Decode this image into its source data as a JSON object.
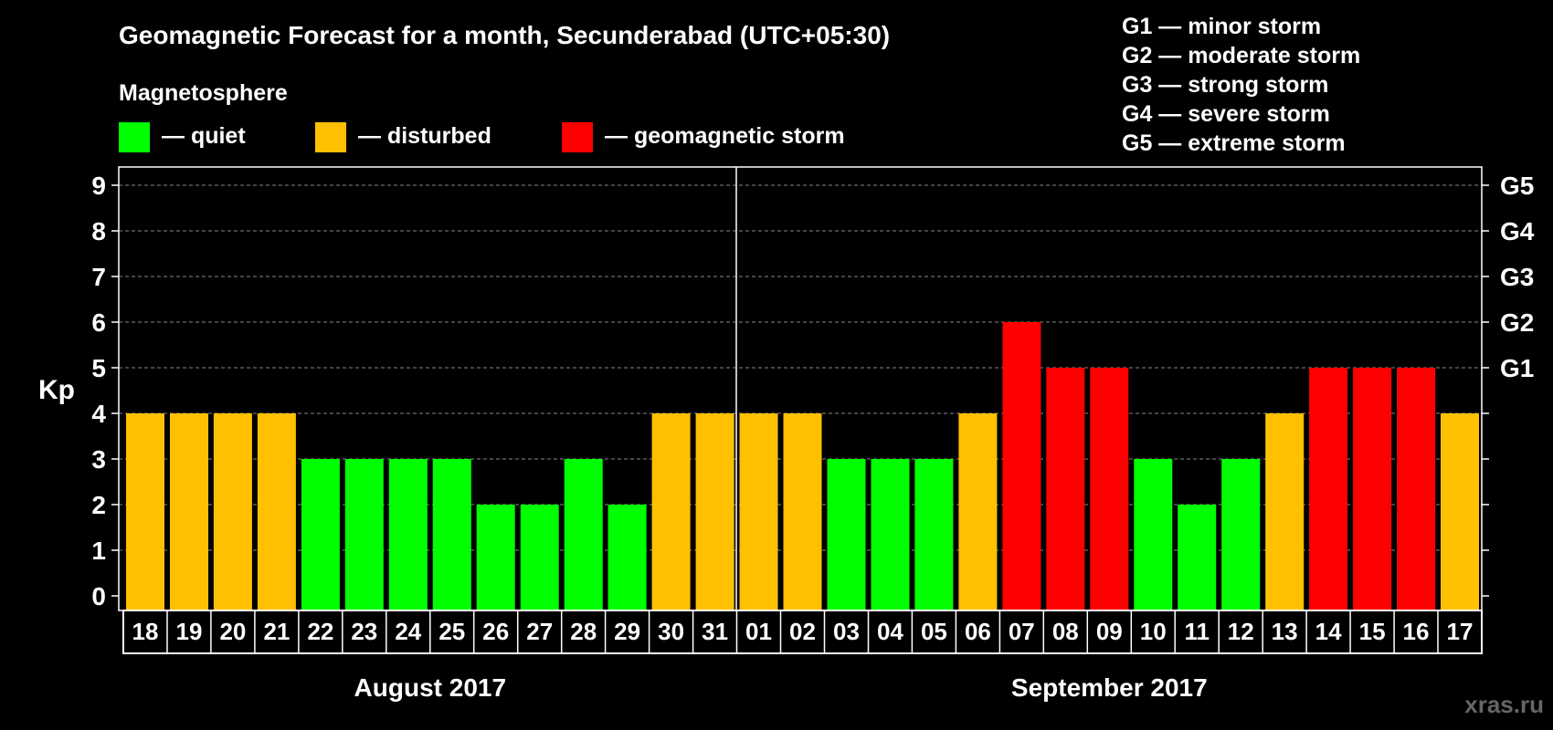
{
  "chart_data": {
    "type": "bar",
    "title": "Geomagnetic Forecast for a month, Secunderabad (UTC+05:30)",
    "legend_title": "Magnetosphere",
    "legend": [
      {
        "key": "quiet",
        "label": "— quiet",
        "color": "#00ff00"
      },
      {
        "key": "disturbed",
        "label": "— disturbed",
        "color": "#ffc000"
      },
      {
        "key": "storm",
        "label": "— geomagnetic storm",
        "color": "#ff0000"
      }
    ],
    "storm_scale": [
      "G1 — minor storm",
      "G2 — moderate storm",
      "G3 — strong storm",
      "G4 — severe storm",
      "G5 — extreme storm"
    ],
    "ylabel": "Kp",
    "ylim": [
      0,
      9
    ],
    "yticks": [
      "0",
      "1",
      "2",
      "3",
      "4",
      "5",
      "6",
      "7",
      "8",
      "9"
    ],
    "right_labels": [
      {
        "value": 5,
        "label": "G1"
      },
      {
        "value": 6,
        "label": "G2"
      },
      {
        "value": 7,
        "label": "G3"
      },
      {
        "value": 8,
        "label": "G4"
      },
      {
        "value": 9,
        "label": "G5"
      }
    ],
    "categories": [
      "18",
      "19",
      "20",
      "21",
      "22",
      "23",
      "24",
      "25",
      "26",
      "27",
      "28",
      "29",
      "30",
      "31",
      "01",
      "02",
      "03",
      "04",
      "05",
      "06",
      "07",
      "08",
      "09",
      "10",
      "11",
      "12",
      "13",
      "14",
      "15",
      "16",
      "17"
    ],
    "values": [
      4,
      4,
      4,
      4,
      3,
      3,
      3,
      3,
      2,
      2,
      3,
      2,
      4,
      4,
      4,
      4,
      3,
      3,
      3,
      4,
      6,
      5,
      5,
      3,
      2,
      3,
      4,
      5,
      5,
      5,
      4
    ],
    "status": [
      "disturbed",
      "disturbed",
      "disturbed",
      "disturbed",
      "quiet",
      "quiet",
      "quiet",
      "quiet",
      "quiet",
      "quiet",
      "quiet",
      "quiet",
      "disturbed",
      "disturbed",
      "disturbed",
      "disturbed",
      "quiet",
      "quiet",
      "quiet",
      "disturbed",
      "storm",
      "storm",
      "storm",
      "quiet",
      "quiet",
      "quiet",
      "disturbed",
      "storm",
      "storm",
      "storm",
      "disturbed"
    ],
    "months": [
      {
        "label": "August 2017",
        "count": 14
      },
      {
        "label": "September 2017",
        "count": 17
      }
    ],
    "watermark": "xras.ru"
  }
}
